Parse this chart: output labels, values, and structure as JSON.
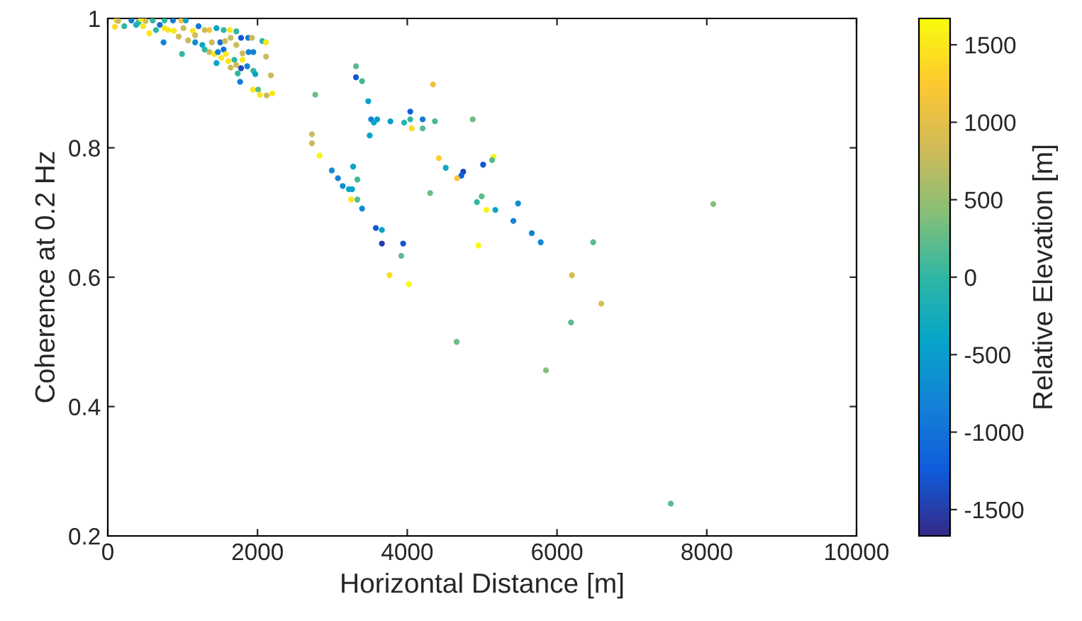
{
  "chart_data": {
    "type": "scatter",
    "xlabel": "Horizontal Distance [m]",
    "ylabel": "Coherence at 0.2 Hz",
    "clabel": "Relative Elevation [m]",
    "xlim": [
      0,
      10000
    ],
    "xticks": [
      0,
      2000,
      4000,
      6000,
      8000,
      10000
    ],
    "ylim": [
      0.2,
      1
    ],
    "yticks": [
      0.2,
      0.4,
      0.6,
      0.8,
      1
    ],
    "clim": [
      -1670,
      1670
    ],
    "cticks": [
      -1500,
      -1000,
      -500,
      0,
      500,
      1000,
      1500
    ],
    "grid": false,
    "marker": "circle",
    "series": [
      {
        "x": [
          3315,
          3315,
          3396,
          2771,
          3479,
          4343,
          4040,
          3517,
          3598,
          3554,
          3775,
          3958,
          4040,
          4205,
          4369,
          4059,
          4205,
          4874,
          2727,
          2727,
          3498,
          2828,
          4422,
          5152,
          5133,
          3277,
          2992,
          4514,
          5013,
          4747,
          4722,
          4665,
          3074,
          3333,
          3138,
          3220,
          3263,
          3251,
          3333,
          4305,
          4994,
          4930,
          3396,
          5057,
          5176,
          5479,
          5417,
          5663,
          5782,
          6483,
          3580,
          3661,
          3661,
          3945,
          3920,
          4949,
          3763,
          4021,
          6199,
          8087,
          6591,
          6187,
          7519,
          4659,
          5852,
          114,
          95,
          221,
          316,
          411,
          505,
          600,
          644,
          555,
          695,
          758,
          871,
          979,
          1042,
          745,
          808,
          884,
          947,
          991,
          1073,
          1167,
          1212,
          1294,
          1357,
          1452,
          1547,
          1629,
          1717,
          1780,
          1875,
          1925,
          2064,
          2114,
          1263,
          1389,
          1502,
          1566,
          1641,
          1294,
          1357,
          1420,
          1471,
          1547,
          1515,
          1578,
          1799,
          1881,
          1944,
          1717,
          1452,
          1610,
          1691,
          1641,
          1717,
          1799,
          1862,
          1780,
          1736,
          1767,
          1944,
          1970,
          2114,
          2178,
          1938,
          2008,
          2032,
          2121,
          2197,
          758,
          139,
          379,
          473,
          442,
          1136,
          1010,
          1167
        ],
        "values": [
          0.926,
          0.909,
          0.903,
          0.882,
          0.872,
          0.898,
          0.856,
          0.844,
          0.844,
          0.839,
          0.841,
          0.839,
          0.844,
          0.844,
          0.841,
          0.83,
          0.83,
          0.844,
          0.821,
          0.807,
          0.819,
          0.788,
          0.784,
          0.786,
          0.781,
          0.771,
          0.765,
          0.769,
          0.774,
          0.763,
          0.757,
          0.753,
          0.753,
          0.751,
          0.741,
          0.736,
          0.736,
          0.72,
          0.72,
          0.73,
          0.725,
          0.716,
          0.706,
          0.704,
          0.704,
          0.714,
          0.687,
          0.668,
          0.654,
          0.654,
          0.676,
          0.673,
          0.652,
          0.652,
          0.633,
          0.649,
          0.603,
          0.589,
          0.603,
          0.713,
          0.559,
          0.53,
          0.25,
          0.5,
          0.456,
          0.997,
          0.987,
          0.988,
          0.997,
          0.994,
          0.996,
          0.997,
          0.982,
          0.977,
          0.99,
          0.997,
          0.997,
          0.997,
          0.997,
          0.963,
          0.982,
          0.981,
          0.972,
          0.945,
          0.966,
          0.963,
          0.988,
          0.982,
          0.982,
          0.985,
          0.982,
          0.982,
          0.98,
          0.97,
          0.97,
          0.97,
          0.965,
          0.963,
          0.959,
          0.963,
          0.963,
          0.965,
          0.97,
          0.952,
          0.948,
          0.945,
          0.948,
          0.952,
          0.939,
          0.945,
          0.946,
          0.948,
          0.948,
          0.959,
          0.931,
          0.934,
          0.936,
          0.924,
          0.928,
          0.936,
          0.926,
          0.923,
          0.915,
          0.902,
          0.919,
          0.914,
          0.941,
          0.912,
          0.89,
          0.89,
          0.882,
          0.881,
          0.884,
          0.985,
          0.996,
          0.99,
          0.988,
          0.999,
          0.981,
          0.985,
          0.974
        ],
        "cvalues": [
          200,
          -1300,
          100,
          300,
          -400,
          1100,
          -1200,
          -800,
          -500,
          -400,
          -500,
          -100,
          0,
          -900,
          100,
          1400,
          200,
          300,
          800,
          800,
          -400,
          1600,
          1300,
          1600,
          200,
          -400,
          -700,
          -300,
          -1300,
          -1400,
          -1200,
          1200,
          -800,
          100,
          -700,
          -400,
          -400,
          1500,
          200,
          300,
          200,
          0,
          -700,
          1600,
          -400,
          -700,
          -800,
          -800,
          -700,
          200,
          -1300,
          -400,
          -1500,
          -1300,
          200,
          1650,
          1400,
          1650,
          900,
          400,
          900,
          200,
          200,
          300,
          400,
          1500,
          1400,
          0,
          -900,
          0,
          800,
          0,
          0,
          1500,
          -1000,
          0,
          -900,
          1100,
          -400,
          -800,
          1500,
          1500,
          800,
          0,
          800,
          -700,
          -900,
          800,
          1100,
          -400,
          0,
          1500,
          0,
          -1300,
          -900,
          800,
          0,
          1500,
          -400,
          800,
          -1000,
          800,
          800,
          0,
          800,
          1500,
          -800,
          -1000,
          1500,
          1500,
          800,
          -800,
          -800,
          800,
          -400,
          1500,
          0,
          800,
          800,
          1500,
          -800,
          -1400,
          0,
          -900,
          0,
          -400,
          800,
          800,
          1500,
          200,
          1500,
          800,
          1500,
          1500,
          800,
          -200,
          1500,
          1500,
          1500,
          800,
          800
        ]
      }
    ]
  }
}
